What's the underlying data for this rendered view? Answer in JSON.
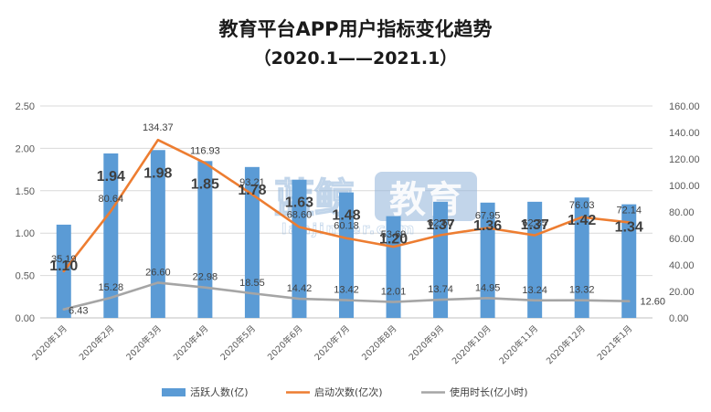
{
  "chart_data": {
    "type": "bar",
    "title": "教育平台APP用户指标变化趋势",
    "subtitle": "（2020.1——2021.1）",
    "categories": [
      "2020年1月",
      "2020年2月",
      "2020年3月",
      "2020年4月",
      "2020年5月",
      "2020年6月",
      "2020年7月",
      "2020年8月",
      "2020年9月",
      "2020年10月",
      "2020年11月",
      "2020年12月",
      "2021年1月"
    ],
    "series": [
      {
        "name": "活跃人数(亿)",
        "type": "bar",
        "axis": "left",
        "color": "#5b9bd5",
        "values": [
          1.1,
          1.94,
          1.98,
          1.85,
          1.78,
          1.63,
          1.48,
          1.2,
          1.37,
          1.36,
          1.37,
          1.42,
          1.34
        ],
        "labels": [
          "1.10",
          "1.94",
          "1.98",
          "1.85",
          "1.78",
          "1.63",
          "1.48",
          "1.20",
          "1.37",
          "1.36",
          "1.37",
          "1.42",
          "1.34"
        ]
      },
      {
        "name": "启动次数(亿次)",
        "type": "line",
        "axis": "right",
        "color": "#ed7d31",
        "values": [
          35.19,
          80.64,
          134.37,
          116.93,
          93.21,
          68.6,
          60.18,
          53.69,
          62.5,
          67.95,
          62.35,
          76.03,
          72.14
        ],
        "labels": [
          "35.19",
          "80.64",
          "134.37",
          "116.93",
          "93.21",
          "68.60",
          "60.18",
          "53.69",
          "62.50",
          "67.95",
          "62.35",
          "76.03",
          "72.14"
        ]
      },
      {
        "name": "使用时长(亿小时)",
        "type": "line",
        "axis": "right",
        "color": "#a5a5a5",
        "values": [
          6.43,
          15.28,
          26.6,
          22.98,
          18.55,
          14.42,
          13.42,
          12.01,
          13.74,
          14.95,
          13.24,
          13.32,
          12.6
        ],
        "labels": [
          "6.43",
          "15.28",
          "26.60",
          "22.98",
          "18.55",
          "14.42",
          "13.42",
          "12.01",
          "13.74",
          "14.95",
          "13.24",
          "13.32",
          "12.60"
        ]
      }
    ],
    "y_left": {
      "min": 0,
      "max": 2.5,
      "ticks": [
        "0.00",
        "0.50",
        "1.00",
        "1.50",
        "2.00",
        "2.50"
      ]
    },
    "y_right": {
      "min": 0,
      "max": 160,
      "ticks": [
        "0.00",
        "20.00",
        "40.00",
        "60.00",
        "80.00",
        "100.00",
        "120.00",
        "140.00",
        "160.00"
      ]
    },
    "grid": true,
    "legend_position": "bottom",
    "watermark": {
      "text": "蓝鲸",
      "text2": "教育",
      "sub": "lanjinger.com",
      "color": "#8fb3d9"
    }
  }
}
